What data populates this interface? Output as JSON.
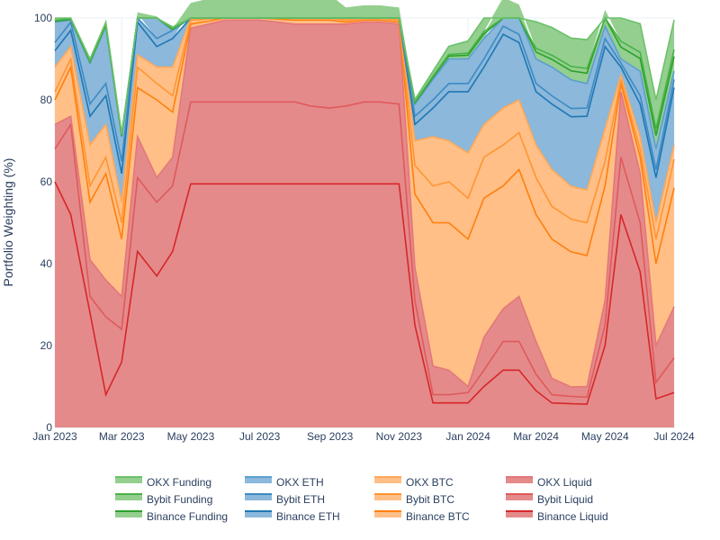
{
  "chart_data": {
    "type": "area",
    "title": "",
    "xlabel": "",
    "ylabel": "Portfolio Weighting (%)",
    "ylim": [
      0,
      100
    ],
    "grid": true,
    "legend_position": "bottom",
    "x_ticks": [
      "Jan 2023",
      "Mar 2023",
      "May 2023",
      "Jul 2023",
      "Sep 2023",
      "Nov 2023",
      "Jan 2024",
      "Mar 2024",
      "May 2024",
      "Jul 2024"
    ],
    "y_ticks": [
      "0",
      "20",
      "40",
      "60",
      "80",
      "100"
    ],
    "x": [
      "2023-01-01",
      "2023-01-15",
      "2023-02-01",
      "2023-02-15",
      "2023-03-01",
      "2023-03-15",
      "2023-04-01",
      "2023-04-15",
      "2023-05-01",
      "2023-06-01",
      "2023-07-01",
      "2023-08-01",
      "2023-08-15",
      "2023-09-01",
      "2023-09-15",
      "2023-10-01",
      "2023-10-15",
      "2023-11-01",
      "2023-11-15",
      "2023-12-01",
      "2023-12-15",
      "2024-01-01",
      "2024-01-15",
      "2024-02-01",
      "2024-02-15",
      "2024-03-01",
      "2024-03-15",
      "2024-04-01",
      "2024-04-15",
      "2024-05-01",
      "2024-05-15",
      "2024-06-01",
      "2024-06-15",
      "2024-07-01"
    ],
    "series": [
      {
        "name": "Binance Liquid",
        "group": "Liquid",
        "values": [
          60,
          52,
          28,
          8,
          16,
          43,
          37,
          43,
          59.5,
          59.5,
          59.5,
          59.5,
          59.5,
          59.5,
          59.5,
          59.5,
          59.5,
          59.5,
          25,
          6,
          6,
          6,
          10,
          14,
          14,
          9,
          6,
          5.8,
          5.7,
          20,
          52,
          38,
          7,
          8.5
        ]
      },
      {
        "name": "Bybit Liquid",
        "group": "Liquid",
        "values": [
          8,
          22,
          4,
          19,
          8,
          18,
          18,
          16,
          20,
          20,
          20,
          20,
          19,
          18.5,
          19,
          20,
          20,
          19.5,
          6,
          2,
          2,
          2.5,
          4,
          7,
          7,
          4,
          2,
          1.8,
          1.7,
          5,
          14,
          12,
          4,
          8.5
        ]
      },
      {
        "name": "OKX Liquid",
        "group": "Liquid",
        "values": [
          6,
          2,
          9,
          9,
          8,
          10,
          6,
          7,
          18,
          20,
          20,
          19,
          20,
          20.5,
          20,
          19.5,
          19.5,
          19.5,
          8,
          7,
          6,
          1.5,
          8,
          8,
          11,
          8,
          4,
          2.3,
          2.6,
          6,
          16,
          12,
          9,
          12.5
        ]
      },
      {
        "name": "Binance BTC",
        "group": "BTC",
        "values": [
          6,
          12,
          14,
          26,
          14,
          12,
          19,
          11,
          1,
          1,
          1,
          1,
          1,
          1,
          0.5,
          0.5,
          0.5,
          0.5,
          18,
          35,
          36,
          36,
          34,
          30,
          31,
          31,
          34,
          33,
          32,
          28,
          2,
          4,
          20,
          29
        ]
      },
      {
        "name": "Bybit BTC",
        "group": "BTC",
        "values": [
          2,
          2,
          4,
          4,
          4,
          5,
          4,
          4,
          1,
          1,
          1,
          1,
          1,
          0.8,
          0.5,
          0.5,
          0.5,
          0.5,
          7,
          9,
          10,
          10,
          10,
          10,
          9,
          9,
          8,
          8,
          8,
          6,
          1,
          2,
          6,
          7
        ]
      },
      {
        "name": "OKX BTC",
        "group": "BTC",
        "values": [
          6,
          3,
          10,
          8,
          5,
          3,
          4,
          7,
          1,
          1,
          1,
          1,
          1,
          1.2,
          0.5,
          0.5,
          0.5,
          0.5,
          6,
          12,
          10,
          11,
          8,
          9,
          8,
          8,
          9,
          8,
          8,
          8,
          1,
          3,
          4,
          3.5
        ]
      },
      {
        "name": "Binance ETH",
        "group": "ETH",
        "values": [
          4,
          4,
          7,
          7,
          7,
          8,
          5,
          7,
          1.5,
          1.5,
          1.5,
          1.5,
          2,
          2.5,
          1.5,
          1.5,
          1.5,
          1.5,
          4,
          7,
          12,
          15,
          14,
          18,
          14,
          13,
          16,
          17,
          18,
          20,
          2,
          8,
          11,
          14
        ]
      },
      {
        "name": "Bybit ETH",
        "group": "ETH",
        "values": [
          2,
          2,
          3,
          3,
          3,
          2,
          2,
          2,
          0.8,
          0.8,
          0.8,
          0.8,
          0.8,
          0.8,
          0.5,
          0.5,
          0.5,
          0.5,
          2,
          2,
          2,
          2,
          2,
          2,
          2,
          2,
          2,
          2,
          2,
          2,
          1,
          2,
          2,
          2
        ]
      },
      {
        "name": "OKX ETH",
        "group": "ETH",
        "values": [
          5,
          0.5,
          10,
          14,
          6,
          0,
          5,
          0,
          0.5,
          0.5,
          0.5,
          0.5,
          0.5,
          0.5,
          0.2,
          0.2,
          0.2,
          0.2,
          3,
          5,
          6,
          6,
          5,
          5,
          5,
          6,
          7,
          7,
          6,
          3,
          1,
          6,
          5,
          2
        ]
      },
      {
        "name": "Binance Funding",
        "group": "Funding",
        "values": [
          0.2,
          0.2,
          0.2,
          0.2,
          0.2,
          0.2,
          0.2,
          0.2,
          0.2,
          0.2,
          0.2,
          0.2,
          0.2,
          0.2,
          0.2,
          0.2,
          0.2,
          0.2,
          0.3,
          0.5,
          0.7,
          0.9,
          1.1,
          1.3,
          1.5,
          1.7,
          1.9,
          2.2,
          2.5,
          2.7,
          2.9,
          3.1,
          3.3,
          3.6
        ]
      },
      {
        "name": "Bybit Funding",
        "group": "Funding",
        "values": [
          0.2,
          0.2,
          0.2,
          0.2,
          0.2,
          0.2,
          0.2,
          0.2,
          0.2,
          0.2,
          0.2,
          0.2,
          0.2,
          0.2,
          0.2,
          0.2,
          0.2,
          0.2,
          0.2,
          0.3,
          0.4,
          0.5,
          0.6,
          0.7,
          0.8,
          0.9,
          1.0,
          1.1,
          1.2,
          1.3,
          1.4,
          1.5,
          1.6,
          1.7
        ]
      },
      {
        "name": "OKX Funding",
        "group": "Funding",
        "values": [
          0.6,
          0.4,
          0.6,
          0.6,
          0.4,
          0.4,
          0.4,
          0.4,
          0.3,
          0.3,
          0.3,
          0.3,
          0.3,
          0.3,
          0.4,
          0.4,
          0.4,
          0.4,
          0.6,
          1.2,
          2.0,
          3.0,
          4.0,
          5.0,
          6.0,
          6.5,
          6.8,
          6.9,
          7.0,
          7.0,
          7.0,
          7.0,
          7.1,
          7.2
        ]
      }
    ],
    "colors": {
      "Liquid": {
        "fill": "#e58a8b",
        "line": "#d62728",
        "shade": [
          "#d62728",
          "#de5a5b",
          "#e3777a"
        ]
      },
      "BTC": {
        "fill": "#ffbf86",
        "line": "#ff7f0e",
        "shade": [
          "#ff7f0e",
          "#ff9533",
          "#ffa85a"
        ]
      },
      "ETH": {
        "fill": "#8bb8db",
        "line": "#1f77b4",
        "shade": [
          "#1f77b4",
          "#3d8bc3",
          "#5c9fcf"
        ]
      },
      "Funding": {
        "fill": "#94cf8f",
        "line": "#2ca02c",
        "shade": [
          "#2ca02c",
          "#49b249",
          "#6bc16b"
        ]
      }
    },
    "legend": [
      [
        "OKX Funding",
        "OKX ETH",
        "OKX BTC",
        "OKX Liquid"
      ],
      [
        "Bybit Funding",
        "Bybit ETH",
        "Bybit BTC",
        "Bybit Liquid"
      ],
      [
        "Binance Funding",
        "Binance ETH",
        "Binance BTC",
        "Binance Liquid"
      ]
    ]
  }
}
